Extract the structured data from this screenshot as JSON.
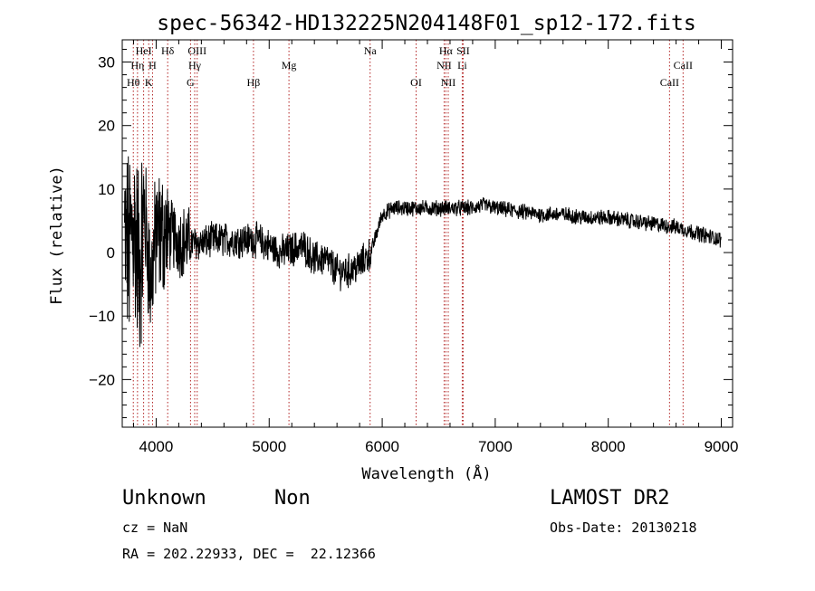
{
  "chart_data": {
    "type": "line",
    "title": "spec-56342-HD132225N204148F01_sp12-172.fits",
    "xlabel": "Wavelength (Å)",
    "ylabel": "Flux (relative)",
    "xlim": [
      3700,
      9100
    ],
    "ylim": [
      -27.5,
      33.5
    ],
    "xticks": [
      4000,
      5000,
      6000,
      7000,
      8000,
      9000
    ],
    "yticks": [
      -20,
      -10,
      0,
      10,
      20,
      30
    ],
    "grid": false,
    "series": [
      {
        "x": [
          3720,
          3760,
          3800,
          3850,
          3900,
          3950,
          4000,
          4100,
          4200,
          4300,
          4400,
          4500,
          4600,
          4700,
          4800,
          4900,
          5000,
          5100,
          5200,
          5300,
          5400,
          5500,
          5600,
          5700,
          5800,
          5900,
          5950,
          6000,
          6100,
          6200,
          6300,
          6400,
          6500,
          6600,
          6700,
          6800,
          6900,
          7000,
          7200,
          7400,
          7600,
          7800,
          8000,
          8200,
          8400,
          8600,
          8800,
          9000
        ],
        "y": [
          2,
          0,
          5,
          -2,
          6,
          -5,
          3,
          3,
          2,
          1.5,
          1.5,
          2,
          2,
          2,
          2,
          2,
          1,
          0,
          0.5,
          1,
          -1,
          -1,
          -3,
          -3,
          -2,
          0,
          3,
          6,
          7,
          7,
          7,
          7,
          7,
          7,
          7,
          7,
          7.5,
          7,
          6.5,
          6,
          6,
          5.5,
          5.5,
          5,
          4.5,
          4,
          3,
          2
        ]
      }
    ]
  },
  "spectral_lines": [
    {
      "label": "HeI",
      "wavelength": 3889,
      "row": 0
    },
    {
      "label": "Hη",
      "wavelength": 3835,
      "row": 1
    },
    {
      "label": "H",
      "wavelength": 3968,
      "row": 1
    },
    {
      "label": "Hθ",
      "wavelength": 3798,
      "row": 2
    },
    {
      "label": "K",
      "wavelength": 3934,
      "row": 2
    },
    {
      "label": "Hδ",
      "wavelength": 4102,
      "row": 0
    },
    {
      "label": "OIII",
      "wavelength": 4363,
      "row": 0
    },
    {
      "label": "Hγ",
      "wavelength": 4341,
      "row": 1
    },
    {
      "label": "G",
      "wavelength": 4304,
      "row": 2
    },
    {
      "label": "Hβ",
      "wavelength": 4861,
      "row": 2
    },
    {
      "label": "Mg",
      "wavelength": 5175,
      "row": 1
    },
    {
      "label": "Na",
      "wavelength": 5893,
      "row": 0
    },
    {
      "label": "OI",
      "wavelength": 6300,
      "row": 2
    },
    {
      "label": "Hα",
      "wavelength": 6563,
      "row": 0
    },
    {
      "label": "SII",
      "wavelength": 6716,
      "row": 0
    },
    {
      "label": "NII",
      "wavelength": 6548,
      "row": 1
    },
    {
      "label": "Li",
      "wavelength": 6708,
      "row": 1
    },
    {
      "label": "NII",
      "wavelength": 6584,
      "row": 2
    },
    {
      "label": "CaII",
      "wavelength": 8662,
      "row": 1
    },
    {
      "label": "CaII",
      "wavelength": 8542,
      "row": 2
    }
  ],
  "info": {
    "class": "Unknown",
    "subclass": "Non",
    "survey": "LAMOST DR2",
    "cz": "cz = NaN",
    "obs_date": "Obs-Date: 20130218",
    "radec": "RA = 202.22933, DEC =  22.12366"
  },
  "colors": {
    "spectrum": "#000000",
    "line_markers": "#b22222"
  }
}
